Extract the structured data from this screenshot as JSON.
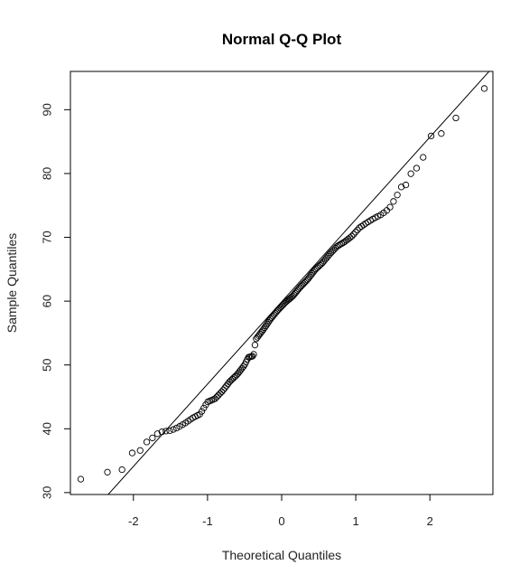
{
  "chart_data": {
    "type": "scatter",
    "title": "Normal Q-Q Plot",
    "xlabel": "Theoretical Quantiles",
    "ylabel": "Sample Quantiles",
    "xlim": [
      -2.85,
      2.85
    ],
    "ylim": [
      29.7,
      96.0
    ],
    "xticks": [
      -2,
      -1,
      0,
      1,
      2
    ],
    "xtick_labels": [
      "-2",
      "-1",
      "0",
      "1",
      "2"
    ],
    "yticks": [
      30,
      40,
      50,
      60,
      70,
      80,
      90
    ],
    "ytick_labels": [
      "30",
      "40",
      "50",
      "60",
      "70",
      "80",
      "90"
    ],
    "grid": false,
    "reference_line": {
      "intercept": 59.9,
      "slope": 12.9
    },
    "marker": "open-circle",
    "colors": {
      "points": "#000000",
      "line": "#000000",
      "frame": "#000000"
    },
    "anchors": [
      [
        -2.71,
        32.1
      ],
      [
        -2.35,
        33.2
      ],
      [
        -2.15,
        33.6
      ],
      [
        -2.02,
        36.2
      ],
      [
        -1.92,
        36.4
      ],
      [
        -1.85,
        37.7
      ],
      [
        -1.76,
        38.4
      ],
      [
        -1.68,
        39.2
      ],
      [
        -1.6,
        39.6
      ],
      [
        -1.5,
        39.7
      ],
      [
        -1.4,
        40.2
      ],
      [
        -1.3,
        40.9
      ],
      [
        -1.2,
        41.7
      ],
      [
        -1.1,
        42.3
      ],
      [
        -1.0,
        44.2
      ],
      [
        -0.9,
        44.7
      ],
      [
        -0.8,
        45.9
      ],
      [
        -0.7,
        47.4
      ],
      [
        -0.6,
        48.5
      ],
      [
        -0.5,
        50.0
      ],
      [
        -0.45,
        51.2
      ],
      [
        -0.38,
        51.4
      ],
      [
        -0.35,
        54.0
      ],
      [
        -0.25,
        55.5
      ],
      [
        -0.15,
        57.2
      ],
      [
        -0.05,
        58.6
      ],
      [
        0.05,
        59.8
      ],
      [
        0.15,
        60.8
      ],
      [
        0.25,
        62.2
      ],
      [
        0.35,
        63.4
      ],
      [
        0.45,
        64.9
      ],
      [
        0.55,
        66.0
      ],
      [
        0.65,
        67.4
      ],
      [
        0.75,
        68.6
      ],
      [
        0.85,
        69.3
      ],
      [
        0.95,
        70.2
      ],
      [
        1.05,
        71.5
      ],
      [
        1.15,
        72.3
      ],
      [
        1.25,
        73.0
      ],
      [
        1.35,
        73.6
      ],
      [
        1.45,
        74.5
      ],
      [
        1.55,
        76.4
      ],
      [
        1.62,
        78.0
      ],
      [
        1.7,
        78.3
      ],
      [
        1.76,
        80.6
      ],
      [
        1.86,
        81.0
      ],
      [
        2.02,
        86.0
      ],
      [
        2.17,
        86.3
      ],
      [
        2.38,
        89.1
      ],
      [
        2.75,
        93.5
      ]
    ]
  }
}
